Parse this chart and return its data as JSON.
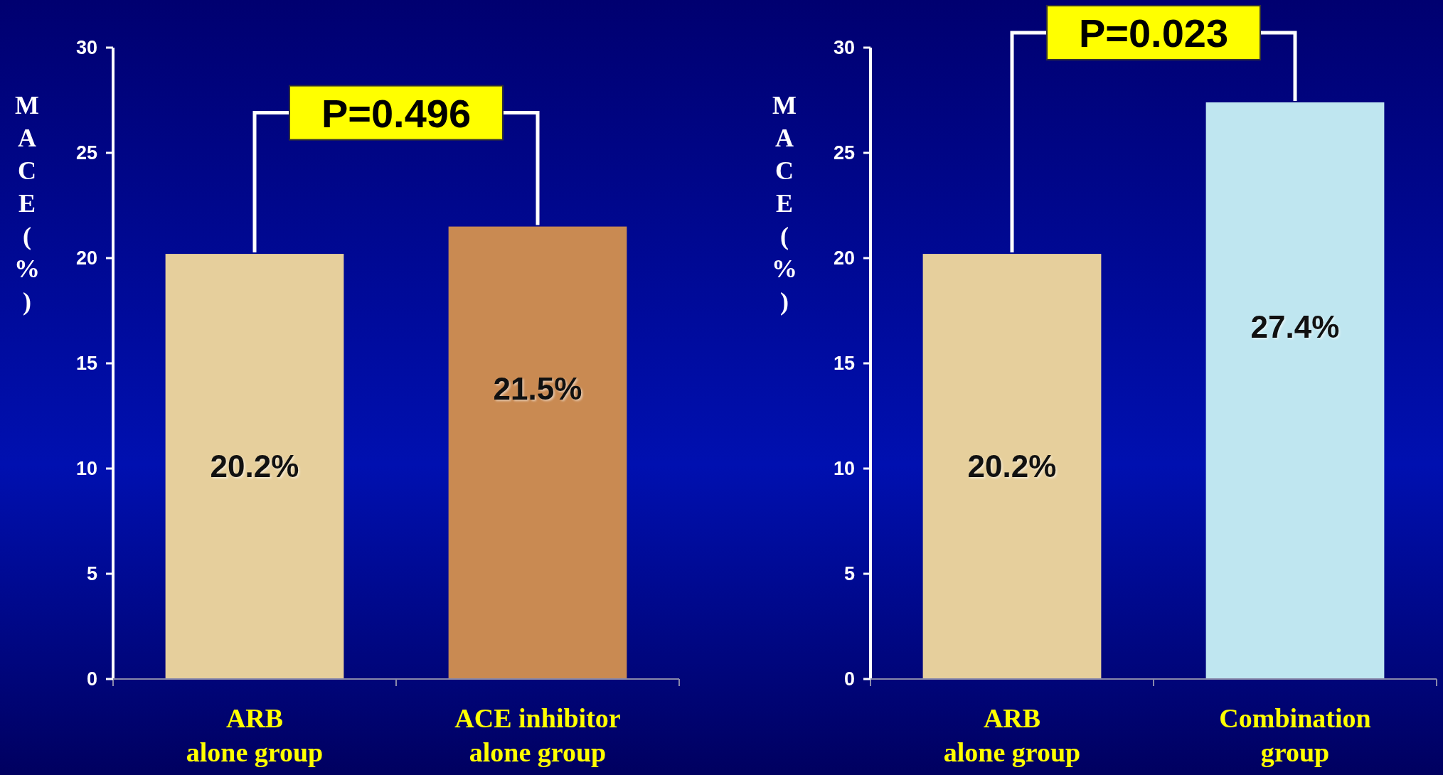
{
  "chart_data": [
    {
      "type": "bar",
      "ylabel": "MACE(%)",
      "categories": [
        "ARB\nalone group",
        "ACE inhibitor\nalone group"
      ],
      "values": [
        20.2,
        21.5
      ],
      "colors": [
        "#e6cf9c",
        "#c98a52"
      ],
      "value_labels": [
        "20.2%",
        "21.5%"
      ],
      "ylim": [
        0,
        30
      ],
      "yticks": [
        0,
        5,
        10,
        15,
        20,
        25,
        30
      ],
      "annotations": [
        "P=0.496"
      ]
    },
    {
      "type": "bar",
      "ylabel": "MACE(%)",
      "categories": [
        "ARB\nalone group",
        "Combination\ngroup"
      ],
      "values": [
        20.2,
        27.4
      ],
      "colors": [
        "#e6cf9c",
        "#bfe6f0"
      ],
      "value_labels": [
        "20.2%",
        "27.4%"
      ],
      "ylim": [
        0,
        30
      ],
      "yticks": [
        0,
        5,
        10,
        15,
        20,
        25,
        30
      ],
      "annotations": [
        "P=0.023"
      ]
    }
  ]
}
